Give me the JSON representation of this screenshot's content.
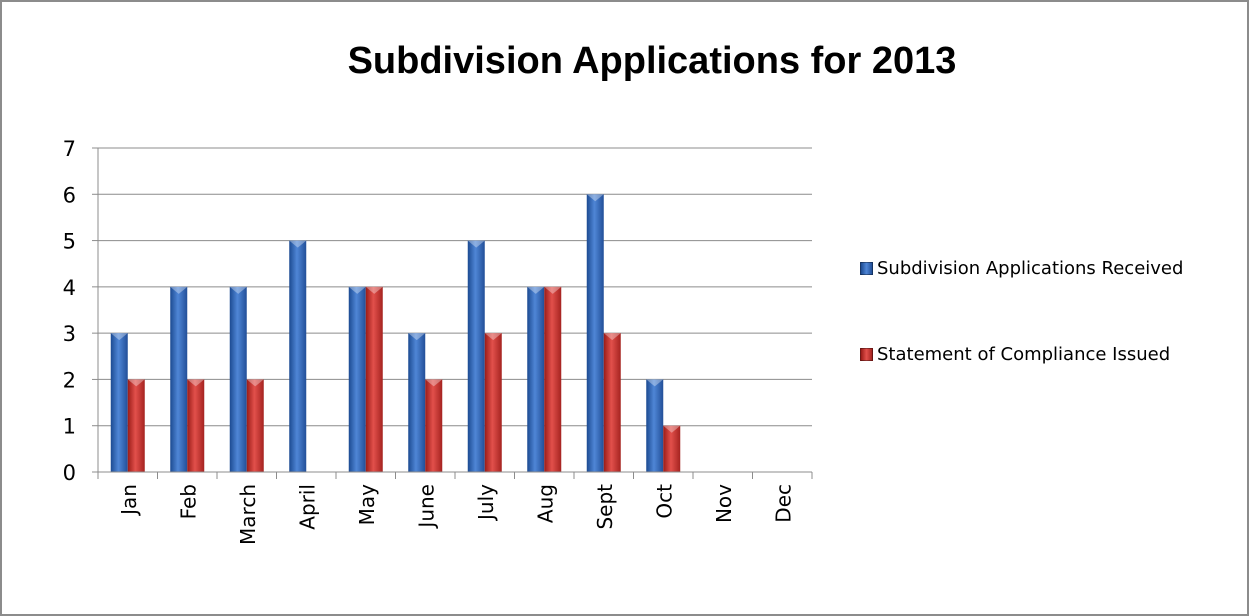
{
  "chart_data": {
    "type": "bar",
    "title": "Subdivision Applications for 2013",
    "categories": [
      "Jan",
      "Feb",
      "March",
      "April",
      "May",
      "June",
      "July",
      "Aug",
      "Sept",
      "Oct",
      "Nov",
      "Dec"
    ],
    "series": [
      {
        "name": "Subdivision Applications Received",
        "color": "#2e62b0",
        "values": [
          3,
          4,
          4,
          5,
          4,
          3,
          5,
          4,
          6,
          2,
          null,
          null
        ]
      },
      {
        "name": "Statement of Compliance Issued",
        "color": "#c42a26",
        "values": [
          2,
          2,
          2,
          0,
          4,
          2,
          3,
          4,
          3,
          1,
          null,
          null
        ]
      }
    ],
    "ylim": [
      0,
      7
    ],
    "yticks": [
      0,
      1,
      2,
      3,
      4,
      5,
      6,
      7
    ],
    "grid": true,
    "legend_position": "right"
  }
}
